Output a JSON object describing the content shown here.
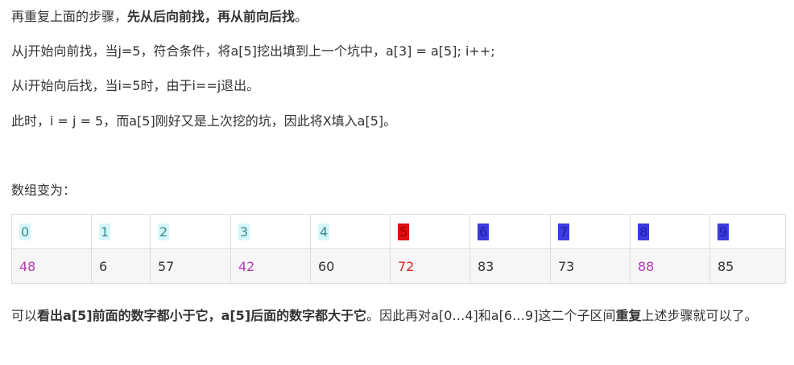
{
  "paragraphs": {
    "p1_pre": "再重复上面的步骤，",
    "p1_bold": "先从后向前找，再从前向后找",
    "p1_post": "。",
    "p2": "从j开始向前找，当j=5，符合条件，将a[5]挖出填到上一个坑中，a[3] = a[5]; i++;",
    "p3": "从i开始向后找，当i=5时，由于i==j退出。",
    "p4": "此时，i = j = 5，而a[5]刚好又是上次挖的坑，因此将X填入a[5]。",
    "p5": "数组变为：",
    "p6_a": "可以",
    "p6_b": "看出a[5]前面的数字都小于它，a[5]后面的数字都大于它",
    "p6_c": "。因此再对a[0…4]和a[6…9]这二个子区间",
    "p6_d": "重复",
    "p6_e": "上述步骤就可以了。"
  },
  "table": {
    "indices": [
      "0",
      "1",
      "2",
      "3",
      "4",
      "5",
      "6",
      "7",
      "8",
      "9"
    ],
    "values": [
      "48",
      "6",
      "57",
      "42",
      "60",
      "72",
      "83",
      "73",
      "88",
      "85"
    ]
  },
  "colors": {
    "index_highlight_cyan": "#d5f6fa",
    "index_highlight_red": "#e01010",
    "index_highlight_blue": "#3b3be0",
    "value_purple": "#b23cb2",
    "value_red": "#e02020"
  }
}
